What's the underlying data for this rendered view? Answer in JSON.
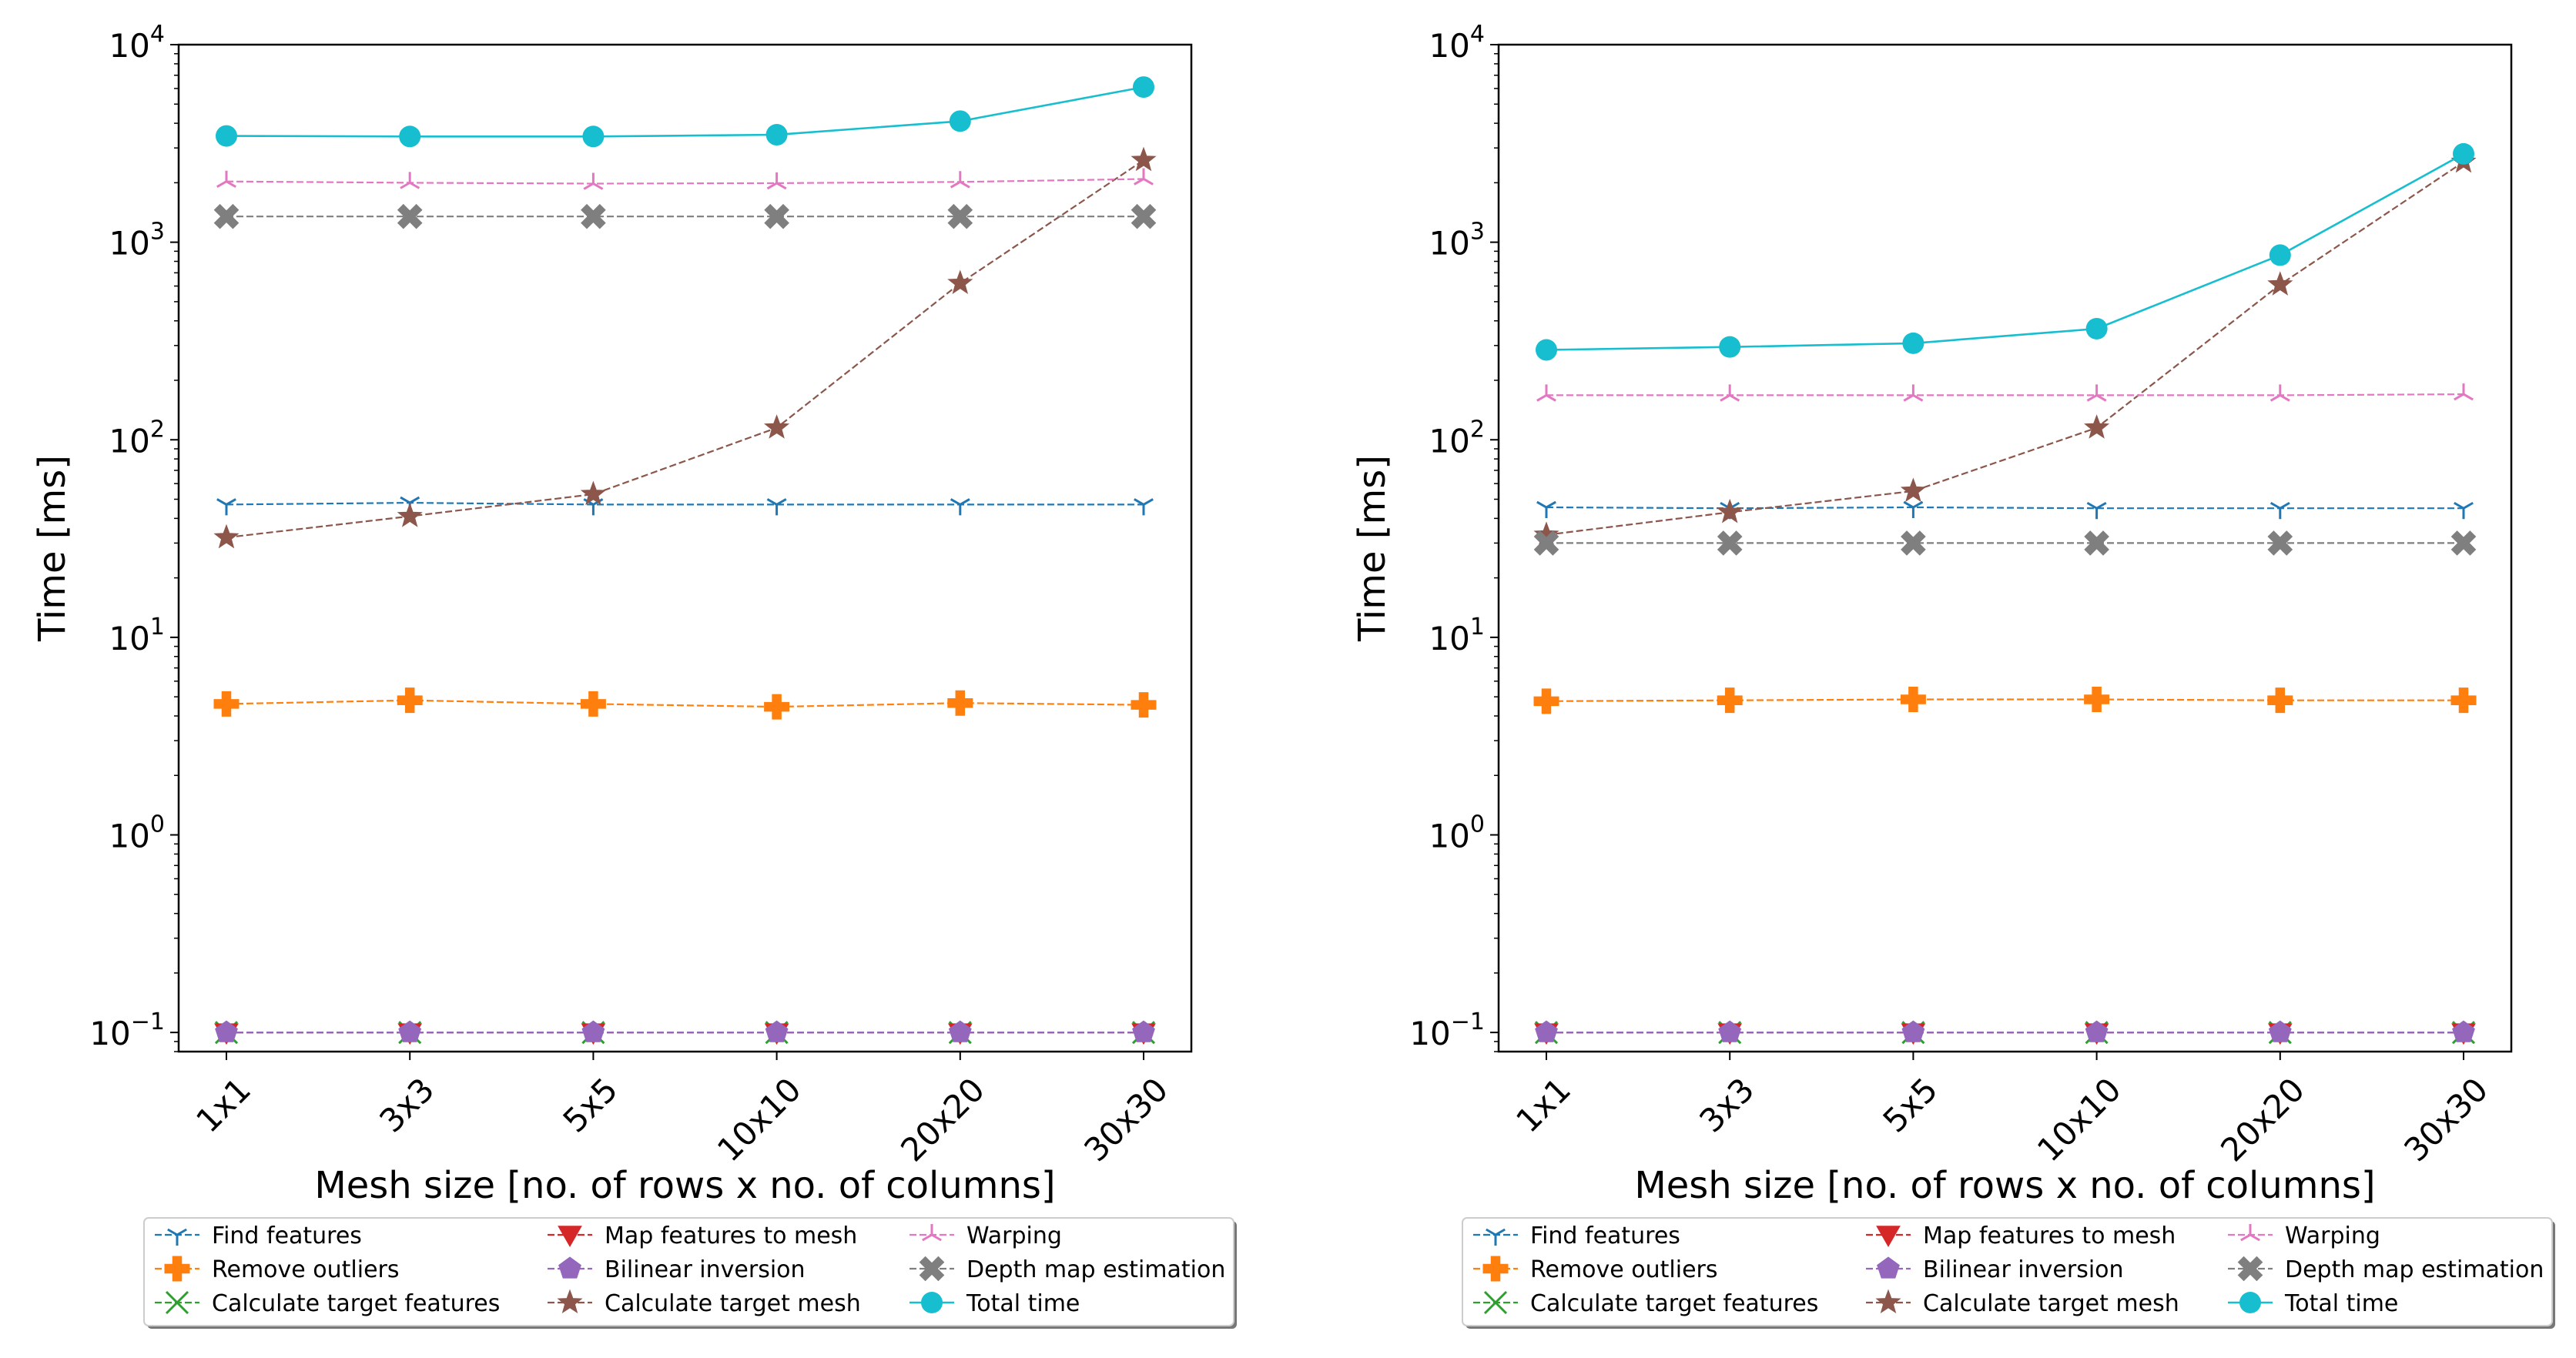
{
  "chart_data": [
    {
      "type": "line",
      "title": "",
      "xlabel": "Mesh size [no. of rows x no. of columns]",
      "ylabel": "Time [ms]",
      "yscale": "log",
      "ylim": [
        0.08,
        10000
      ],
      "yticks": [
        {
          "value": 0.1,
          "base": "10",
          "exp": "−1"
        },
        {
          "value": 1,
          "base": "10",
          "exp": "0"
        },
        {
          "value": 10,
          "base": "10",
          "exp": "1"
        },
        {
          "value": 100,
          "base": "10",
          "exp": "2"
        },
        {
          "value": 1000,
          "base": "10",
          "exp": "3"
        },
        {
          "value": 10000,
          "base": "10",
          "exp": "4"
        }
      ],
      "categories": [
        "1x1",
        "3x3",
        "5x5",
        "10x10",
        "20x20",
        "30x30"
      ],
      "grid": false,
      "legend_position": "bottom",
      "series": [
        {
          "name": "Find features",
          "color": "#1f77b4",
          "marker": "tri_down",
          "dashed": true,
          "values": [
            47,
            48,
            47,
            47,
            47,
            47
          ]
        },
        {
          "name": "Remove outliers",
          "color": "#ff7f0e",
          "marker": "plus_filled",
          "dashed": true,
          "values": [
            4.6,
            4.8,
            4.6,
            4.45,
            4.65,
            4.55
          ]
        },
        {
          "name": "Calculate target features",
          "color": "#2ca02c",
          "marker": "x",
          "dashed": true,
          "values": [
            0.1,
            0.1,
            0.1,
            0.1,
            0.1,
            0.1
          ]
        },
        {
          "name": "Map features to mesh",
          "color": "#d62728",
          "marker": "triangle_down",
          "dashed": true,
          "values": [
            0.1,
            0.1,
            0.1,
            0.1,
            0.1,
            0.1
          ]
        },
        {
          "name": "Bilinear inversion",
          "color": "#9467bd",
          "marker": "pentagon",
          "dashed": true,
          "values": [
            0.1,
            0.1,
            0.1,
            0.1,
            0.1,
            0.1
          ]
        },
        {
          "name": "Calculate target mesh",
          "color": "#8c564b",
          "marker": "star",
          "dashed": true,
          "values": [
            32,
            41,
            53,
            115,
            620,
            2600
          ]
        },
        {
          "name": "Warping",
          "color": "#e377c2",
          "marker": "tri_up",
          "dashed": true,
          "values": [
            2030,
            2000,
            1980,
            1990,
            2020,
            2090
          ]
        },
        {
          "name": "Depth map estimation",
          "color": "#7f7f7f",
          "marker": "x_filled",
          "dashed": true,
          "values": [
            1350,
            1350,
            1350,
            1350,
            1350,
            1350
          ]
        },
        {
          "name": "Total time",
          "color": "#17becf",
          "marker": "circle",
          "dashed": false,
          "values": [
            3450,
            3430,
            3430,
            3500,
            4100,
            6100
          ]
        }
      ]
    },
    {
      "type": "line",
      "title": "",
      "xlabel": "Mesh size [no. of rows x no. of columns]",
      "ylabel": "Time [ms]",
      "yscale": "log",
      "ylim": [
        0.08,
        10000
      ],
      "yticks": [
        {
          "value": 0.1,
          "base": "10",
          "exp": "−1"
        },
        {
          "value": 1,
          "base": "10",
          "exp": "0"
        },
        {
          "value": 10,
          "base": "10",
          "exp": "1"
        },
        {
          "value": 100,
          "base": "10",
          "exp": "2"
        },
        {
          "value": 1000,
          "base": "10",
          "exp": "3"
        },
        {
          "value": 10000,
          "base": "10",
          "exp": "4"
        }
      ],
      "categories": [
        "1x1",
        "3x3",
        "5x5",
        "10x10",
        "20x20",
        "30x30"
      ],
      "grid": false,
      "legend_position": "bottom",
      "series": [
        {
          "name": "Find features",
          "color": "#1f77b4",
          "marker": "tri_down",
          "dashed": true,
          "values": [
            45.5,
            45,
            45.5,
            45,
            45,
            45
          ]
        },
        {
          "name": "Remove outliers",
          "color": "#ff7f0e",
          "marker": "plus_filled",
          "dashed": true,
          "values": [
            4.75,
            4.8,
            4.85,
            4.85,
            4.8,
            4.8
          ]
        },
        {
          "name": "Calculate target features",
          "color": "#2ca02c",
          "marker": "x",
          "dashed": true,
          "values": [
            0.1,
            0.1,
            0.1,
            0.1,
            0.1,
            0.1
          ]
        },
        {
          "name": "Map features to mesh",
          "color": "#d62728",
          "marker": "triangle_down",
          "dashed": true,
          "values": [
            0.1,
            0.1,
            0.1,
            0.1,
            0.1,
            0.1
          ]
        },
        {
          "name": "Bilinear inversion",
          "color": "#9467bd",
          "marker": "pentagon",
          "dashed": true,
          "values": [
            0.1,
            0.1,
            0.1,
            0.1,
            0.1,
            0.1
          ]
        },
        {
          "name": "Calculate target mesh",
          "color": "#8c564b",
          "marker": "star",
          "dashed": true,
          "values": [
            33,
            43,
            55,
            115,
            610,
            2550
          ]
        },
        {
          "name": "Warping",
          "color": "#e377c2",
          "marker": "tri_up",
          "dashed": true,
          "values": [
            168,
            168,
            168,
            168,
            168,
            170
          ]
        },
        {
          "name": "Depth map estimation",
          "color": "#7f7f7f",
          "marker": "x_filled",
          "dashed": true,
          "values": [
            30,
            30,
            30,
            30,
            30,
            30
          ]
        },
        {
          "name": "Total time",
          "color": "#17becf",
          "marker": "circle",
          "dashed": false,
          "values": [
            285,
            295,
            308,
            365,
            860,
            2800
          ]
        }
      ]
    }
  ]
}
